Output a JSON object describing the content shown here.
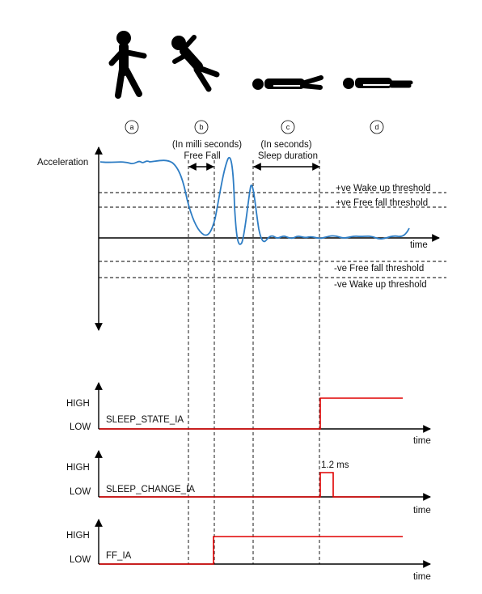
{
  "stages": [
    {
      "letter": "a",
      "icon": "walking-person-icon"
    },
    {
      "letter": "b",
      "icon": "falling-person-icon"
    },
    {
      "letter": "c",
      "icon": "lying-person-icon"
    },
    {
      "letter": "d",
      "icon": "lying-person-icon"
    }
  ],
  "annotations": {
    "free_fall_note": "(In milli seconds)",
    "free_fall_label": "Free Fall",
    "sleep_note": "(In seconds)",
    "sleep_label": "Sleep duration"
  },
  "accel_plot": {
    "ylabel": "Acceleration",
    "xlabel": "time",
    "thresholds": {
      "pos_wake": "+ve Wake up threshold",
      "pos_ff": "+ve Free fall threshold",
      "neg_ff": "-ve Free fall threshold",
      "neg_wake": "-ve Wake up threshold"
    }
  },
  "signals": [
    {
      "name": "SLEEP_STATE_IA",
      "high": "HIGH",
      "low": "LOW",
      "xlabel": "time"
    },
    {
      "name": "SLEEP_CHANGE_IA",
      "high": "HIGH",
      "low": "LOW",
      "xlabel": "time",
      "pulse_note": "1.2 ms"
    },
    {
      "name": "FF_IA",
      "high": "HIGH",
      "low": "LOW",
      "xlabel": "time"
    }
  ],
  "colors": {
    "signal": "#e00000",
    "curve": "#2e7dc4",
    "axis": "#000000"
  }
}
